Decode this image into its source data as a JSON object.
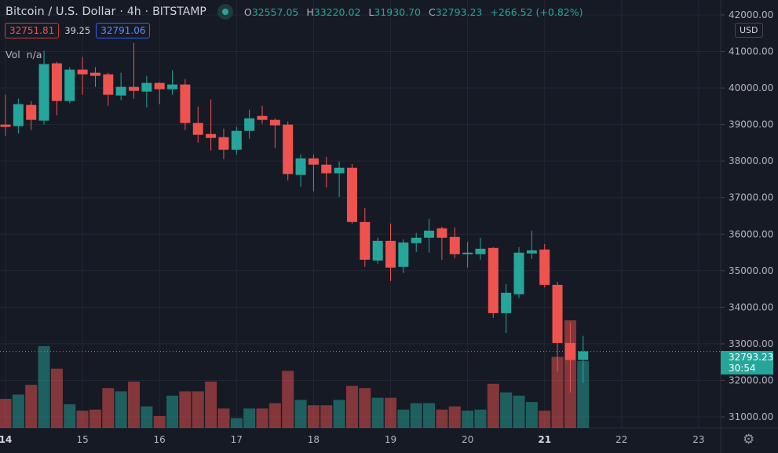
{
  "header": {
    "symbol": "Bitcoin / U.S. Dollar",
    "interval": "4h",
    "exchange": "BITSTAMP",
    "separator": "·",
    "status_icon": "market-open-dot",
    "ohlc": {
      "o_label": "O",
      "o": "32557.05",
      "h_label": "H",
      "h": "33220.02",
      "l_label": "L",
      "l": "31930.70",
      "c_label": "C",
      "c": "32793.23",
      "change": "+266.52 (+0.82%)"
    }
  },
  "spread": {
    "sell": "32751.81",
    "spread": "39.25",
    "buy": "32791.06"
  },
  "volume_legend": {
    "label": "Vol",
    "value": "n/a"
  },
  "currency_button": "USD",
  "last_price": {
    "price": "32793.23",
    "countdown": "30:54",
    "value": 32793.23
  },
  "colors": {
    "up": "#26a69a",
    "down": "#ef5350",
    "background": "#161a25",
    "grid": "#232734"
  },
  "settings_icon": "gear-icon",
  "chart_data": {
    "type": "candlestick",
    "y_ticks": [
      "31000.00",
      "32000.00",
      "33000.00",
      "34000.00",
      "35000.00",
      "36000.00",
      "37000.00",
      "38000.00",
      "39000.00",
      "40000.00",
      "41000.00",
      "42000.00"
    ],
    "ylim": [
      30700,
      42400
    ],
    "x_ticks": [
      "14",
      "15",
      "16",
      "17",
      "18",
      "19",
      "20",
      "21",
      "22",
      "23"
    ],
    "x_tick_bold": [
      "14",
      "21"
    ],
    "bars_per_day": 6,
    "grid": true,
    "volume_scale": "relative (max = 100)",
    "candles": [
      [
        38998,
        39815,
        38697,
        38934,
        27
      ],
      [
        38955,
        39708,
        38762,
        39557,
        31
      ],
      [
        39536,
        39643,
        38848,
        39127,
        40
      ],
      [
        39106,
        41019,
        38998,
        40654,
        76
      ],
      [
        40675,
        40718,
        39256,
        39643,
        55
      ],
      [
        39643,
        40568,
        39579,
        40503,
        22
      ],
      [
        40503,
        40847,
        39815,
        40374,
        16
      ],
      [
        40417,
        40568,
        40030,
        40331,
        17
      ],
      [
        40374,
        40417,
        39514,
        39815,
        37
      ],
      [
        39794,
        40417,
        39665,
        40030,
        34
      ],
      [
        40030,
        41234,
        39708,
        39922,
        43
      ],
      [
        39901,
        40331,
        39471,
        40138,
        20
      ],
      [
        40138,
        40159,
        39557,
        39966,
        11
      ],
      [
        39966,
        40482,
        39815,
        40095,
        30
      ],
      [
        40095,
        40245,
        38848,
        39041,
        34
      ],
      [
        39041,
        39493,
        38504,
        38719,
        34
      ],
      [
        38740,
        39686,
        38289,
        38633,
        43
      ],
      [
        38654,
        38891,
        38052,
        38310,
        18
      ],
      [
        38310,
        38934,
        38181,
        38826,
        9
      ],
      [
        38826,
        39407,
        38611,
        39170,
        18
      ],
      [
        39235,
        39514,
        39020,
        39127,
        18
      ],
      [
        39127,
        39170,
        38353,
        38977,
        23
      ],
      [
        38998,
        39084,
        37472,
        37644,
        53
      ],
      [
        37622,
        38181,
        37300,
        38074,
        26
      ],
      [
        38074,
        38181,
        37171,
        37902,
        21
      ],
      [
        37902,
        38117,
        37278,
        37665,
        21
      ],
      [
        37665,
        37988,
        37020,
        37816,
        26
      ],
      [
        37816,
        37923,
        36289,
        36332,
        39
      ],
      [
        36332,
        36719,
        35107,
        35300,
        37
      ],
      [
        35279,
        35902,
        35193,
        35816,
        28
      ],
      [
        35816,
        36289,
        34720,
        35085,
        28
      ],
      [
        35107,
        35859,
        34935,
        35773,
        17
      ],
      [
        35752,
        36031,
        35515,
        35902,
        23
      ],
      [
        35902,
        36418,
        35494,
        36096,
        23
      ],
      [
        36160,
        36203,
        35300,
        35902,
        17
      ],
      [
        35924,
        36182,
        35343,
        35451,
        20
      ],
      [
        35451,
        35795,
        35085,
        35494,
        16
      ],
      [
        35451,
        35902,
        35300,
        35601,
        17
      ],
      [
        35623,
        35644,
        33709,
        33838,
        41
      ],
      [
        33838,
        34634,
        33300,
        34397,
        33
      ],
      [
        34354,
        35644,
        34247,
        35494,
        30
      ],
      [
        35472,
        36096,
        35322,
        35558,
        24
      ],
      [
        35580,
        35730,
        34548,
        34612,
        16
      ],
      [
        34612,
        34698,
        32247,
        33021,
        66
      ],
      [
        33021,
        33580,
        31667,
        32557,
        100
      ],
      [
        32557.05,
        33220.02,
        31930.7,
        32793.23,
        62
      ]
    ],
    "candle_fields": [
      "open",
      "high",
      "low",
      "close",
      "volume"
    ]
  }
}
